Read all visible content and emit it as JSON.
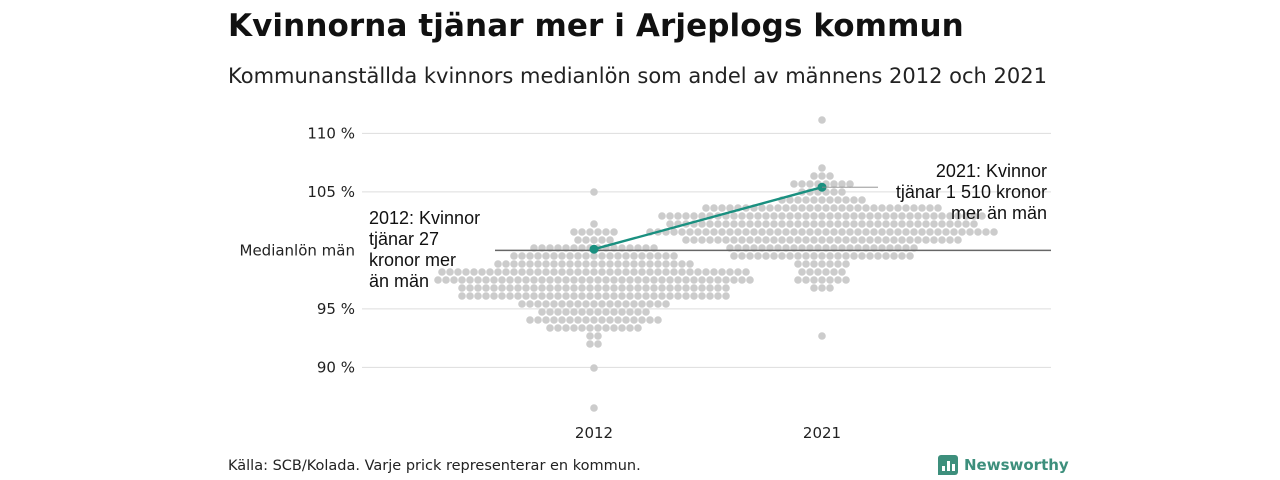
{
  "title": "Kvinnorna tjänar mer i Arjeplogs kommun",
  "subtitle": "Kommunanställda kvinnors medianlön som andel av männens 2012 och 2021",
  "source": "Källa: SCB/Kolada. Varje prick representerar en kommun.",
  "brand": "Newsworthy",
  "colors": {
    "dots": "#cccccc",
    "highlight": "#1a9080",
    "grid": "#dddddd",
    "reference": "#666666"
  },
  "chart_data": {
    "type": "scatter",
    "subtype": "beeswarm",
    "categories": [
      "2012",
      "2021"
    ],
    "ylim": [
      85.5,
      112
    ],
    "yticks": [
      {
        "value": 90,
        "label": "90 %"
      },
      {
        "value": 95,
        "label": "95 %"
      },
      {
        "value": 105,
        "label": "105 %"
      },
      {
        "value": 110,
        "label": "110 %"
      }
    ],
    "reference_line": {
      "value": 100,
      "label": "Medianlön män"
    },
    "grid": true,
    "distribution": {
      "2012": {
        "count": 290,
        "min": 86.5,
        "max": 105.2,
        "median": 97.0
      },
      "2021": {
        "count": 290,
        "min": 92.5,
        "max": 111.2,
        "median": 101.8
      }
    },
    "highlight": {
      "series": [
        {
          "x": "2012",
          "y": 100.1
        },
        {
          "x": "2021",
          "y": 105.4
        }
      ],
      "annotations": [
        {
          "x": "2012",
          "lines": [
            "2012: Kvinnor",
            "tjänar 27",
            "kronor mer",
            "än män"
          ]
        },
        {
          "x": "2021",
          "lines": [
            "2021: Kvinnor",
            "tjänar 1 510 kronor",
            "mer än män"
          ]
        }
      ]
    }
  }
}
